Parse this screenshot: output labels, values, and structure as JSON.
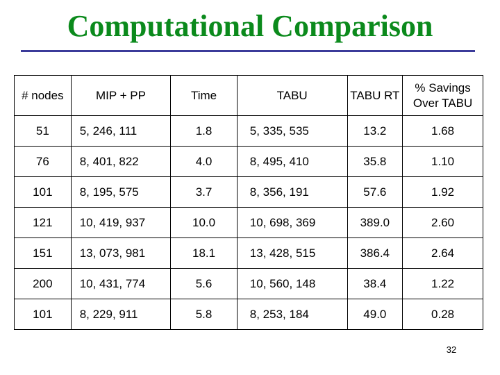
{
  "slide": {
    "title": "Computational Comparison",
    "page_number": "32",
    "colors": {
      "title": "#0b8a1c",
      "rule": "#3b3b9a"
    }
  },
  "table": {
    "headers": {
      "nodes": "# nodes",
      "mip": "MIP + PP",
      "time": "Time",
      "tabu": "TABU",
      "tabu_rt": "TABU RT",
      "savings_line1": "% Savings",
      "savings_line2": "Over TABU"
    },
    "rows": [
      {
        "nodes": "51",
        "mip": "5, 246, 111",
        "time": "1.8",
        "tabu": "5, 335, 535",
        "tabu_rt": "13.2",
        "savings": "1.68"
      },
      {
        "nodes": "76",
        "mip": "8, 401, 822",
        "time": "4.0",
        "tabu": "8, 495, 410",
        "tabu_rt": "35.8",
        "savings": "1.10"
      },
      {
        "nodes": "101",
        "mip": "8, 195, 575",
        "time": "3.7",
        "tabu": "8, 356, 191",
        "tabu_rt": "57.6",
        "savings": "1.92"
      },
      {
        "nodes": "121",
        "mip": "10, 419, 937",
        "time": "10.0",
        "tabu": "10, 698, 369",
        "tabu_rt": "389.0",
        "savings": "2.60"
      },
      {
        "nodes": "151",
        "mip": "13, 073, 981",
        "time": "18.1",
        "tabu": "13, 428, 515",
        "tabu_rt": "386.4",
        "savings": "2.64"
      },
      {
        "nodes": "200",
        "mip": "10, 431, 774",
        "time": "5.6",
        "tabu": "10, 560, 148",
        "tabu_rt": "38.4",
        "savings": "1.22"
      },
      {
        "nodes": "101",
        "mip": "8, 229, 911",
        "time": "5.8",
        "tabu": "8, 253, 184",
        "tabu_rt": "49.0",
        "savings": "0.28"
      }
    ]
  }
}
